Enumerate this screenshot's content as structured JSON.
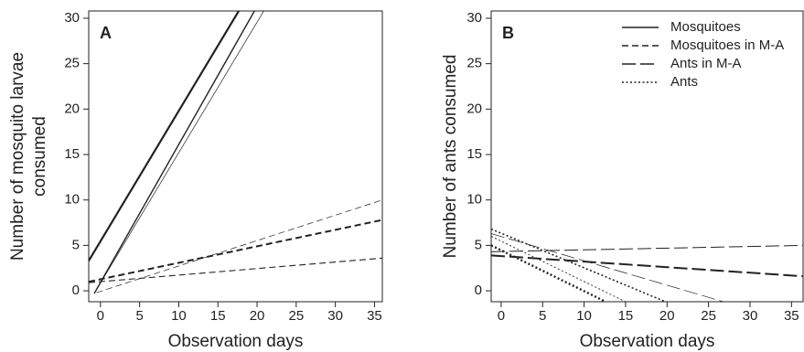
{
  "chart_data": [
    {
      "type": "line",
      "panel_label": "A",
      "xlabel": "Observation days",
      "ylabel": [
        "Number of mosquito larvae",
        "consumed"
      ],
      "xlim": [
        -1.5,
        36
      ],
      "ylim": [
        -1.2,
        30.8
      ],
      "xticks": [
        0,
        5,
        10,
        15,
        20,
        25,
        30,
        35
      ],
      "yticks": [
        0,
        5,
        10,
        15,
        20,
        25,
        30
      ],
      "color": "#222222",
      "series": [
        {
          "style": "solid",
          "width": 2.2,
          "x": [
            -1.5,
            17.8
          ],
          "values": [
            3.3,
            31
          ]
        },
        {
          "style": "solid",
          "width": 1.4,
          "x": [
            -0.8,
            19.8
          ],
          "values": [
            -0.3,
            31
          ]
        },
        {
          "style": "solid",
          "width": 0.7,
          "x": [
            -0.8,
            21.0
          ],
          "values": [
            -0.3,
            31
          ]
        },
        {
          "style": "dashed",
          "width": 0.7,
          "x": [
            -0.5,
            36
          ],
          "values": [
            -0.2,
            10
          ]
        },
        {
          "style": "dashed",
          "width": 2.0,
          "x": [
            -1.5,
            36
          ],
          "values": [
            1.0,
            7.8
          ]
        },
        {
          "style": "dashed",
          "width": 1.1,
          "x": [
            -1.5,
            36
          ],
          "values": [
            0.9,
            3.6
          ]
        }
      ]
    },
    {
      "type": "line",
      "panel_label": "B",
      "xlabel": "Observation days",
      "ylabel": [
        "Number of ants consumed"
      ],
      "xlim": [
        -1.2,
        36.4
      ],
      "ylim": [
        -1.2,
        30.8
      ],
      "xticks": [
        0,
        5,
        10,
        15,
        20,
        25,
        30,
        35
      ],
      "yticks": [
        0,
        5,
        10,
        15,
        20,
        25,
        30
      ],
      "color": "#222222",
      "legend_position": "upper right",
      "legend": [
        {
          "label": "Mosquitoes",
          "style": "solid"
        },
        {
          "label": "Mosquitoes in M-A",
          "style": "dashed"
        },
        {
          "label": "Ants in M-A",
          "style": "longdash"
        },
        {
          "label": "Ants",
          "style": "dotted"
        }
      ],
      "series": [
        {
          "style": "longdash",
          "width": 1.0,
          "x": [
            -1.2,
            36.4
          ],
          "values": [
            4.3,
            5.0
          ]
        },
        {
          "style": "longdash",
          "width": 2.0,
          "x": [
            -1.2,
            36.4
          ],
          "values": [
            3.9,
            1.6
          ]
        },
        {
          "style": "longdash",
          "width": 0.7,
          "x": [
            -1.2,
            26.8
          ],
          "values": [
            6.3,
            -1.2
          ]
        },
        {
          "style": "dotted",
          "width": 2.4,
          "x": [
            -1.2,
            12.6
          ],
          "values": [
            5.0,
            -1.2
          ]
        },
        {
          "style": "dotted",
          "width": 0.9,
          "x": [
            -1.2,
            15.0
          ],
          "values": [
            6.0,
            -1.2
          ]
        },
        {
          "style": "dotted",
          "width": 1.6,
          "x": [
            -1.2,
            19.8
          ],
          "values": [
            6.8,
            -1.2
          ]
        }
      ]
    }
  ]
}
